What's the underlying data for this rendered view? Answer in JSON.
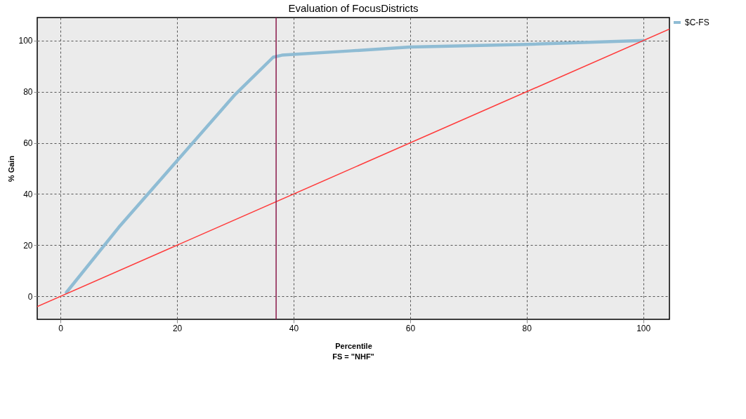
{
  "chart_data": {
    "type": "line",
    "title": "Evaluation of FocusDistricts",
    "xlabel": "Percentile",
    "ylabel": "% Gain",
    "annotations": [
      "FS = \"NHF\""
    ],
    "xlim": [
      -4,
      104.5
    ],
    "ylim": [
      -9,
      109
    ],
    "xticks": [
      0,
      20,
      40,
      60,
      80,
      100
    ],
    "yticks": [
      0,
      20,
      40,
      60,
      80,
      100
    ],
    "grid": true,
    "legend": "right",
    "series": [
      {
        "name": "$C-FS",
        "color": "#8fbcd4",
        "x": [
          1,
          10,
          20,
          30,
          36.5,
          38,
          50,
          60,
          80,
          100
        ],
        "values": [
          1.5,
          27,
          53,
          79,
          93.5,
          94.3,
          96,
          97.5,
          98.5,
          100
        ]
      },
      {
        "color": "#ff3b3b",
        "x": [
          -4,
          104.5
        ],
        "values": [
          -4,
          104.5
        ]
      }
    ],
    "ref_lines": [
      {
        "axis": "x",
        "value": 37,
        "color": "#8b1a4a"
      }
    ]
  }
}
